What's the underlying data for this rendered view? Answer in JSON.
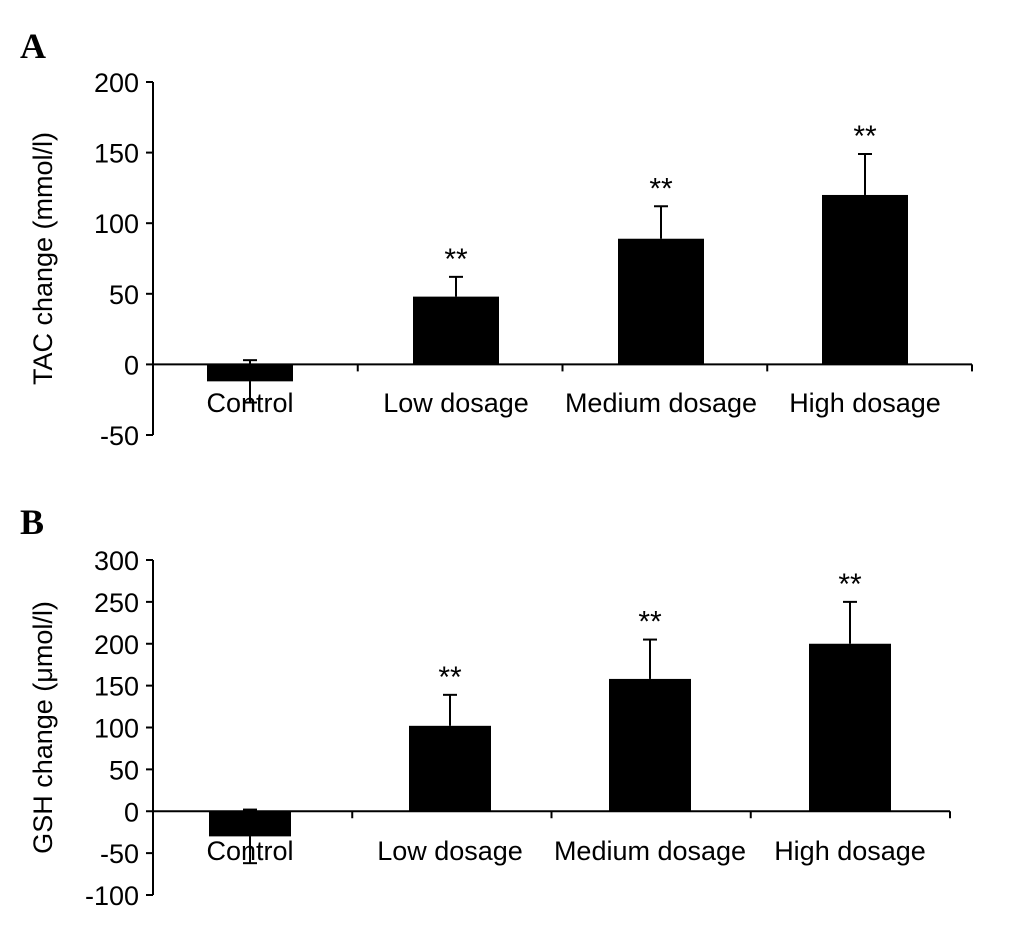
{
  "chart_data": [
    {
      "panel_label": "A",
      "type": "bar",
      "categories": [
        "Control",
        "Low dosage",
        "Medium dosage",
        "High dosage"
      ],
      "series": [
        {
          "values": [
            -12,
            48,
            89,
            120
          ],
          "errors": [
            15,
            14,
            23,
            29
          ],
          "annotations": [
            "",
            "**",
            "**",
            "**"
          ],
          "color": "#000000"
        }
      ],
      "xlabel": "",
      "ylabel": "TAC change (mmol/l)",
      "ylim": [
        -50,
        200
      ],
      "yticks": [
        -50,
        0,
        50,
        100,
        150,
        200
      ],
      "grid": false
    },
    {
      "panel_label": "B",
      "type": "bar",
      "categories": [
        "Control",
        "Low dosage",
        "Medium dosage",
        "High dosage"
      ],
      "series": [
        {
          "values": [
            -30,
            102,
            158,
            200
          ],
          "errors": [
            32,
            37,
            47,
            50
          ],
          "annotations": [
            "",
            "**",
            "**",
            "**"
          ],
          "color": "#000000"
        }
      ],
      "xlabel": "",
      "ylabel": "GSH change (μmol/l)",
      "ylim": [
        -100,
        300
      ],
      "yticks": [
        -100,
        -50,
        0,
        50,
        100,
        150,
        200,
        250,
        300
      ],
      "grid": false
    }
  ]
}
